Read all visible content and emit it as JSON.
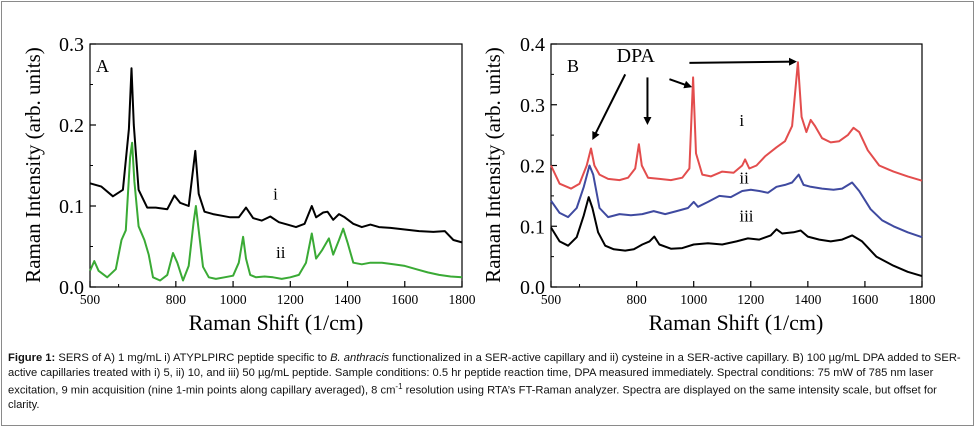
{
  "chart_data": [
    {
      "type": "line",
      "panel_label": "A",
      "xlabel": "Raman Shift (1/cm)",
      "ylabel": "Raman Intensity (arb. units)",
      "xlim": [
        500,
        1800
      ],
      "ylim": [
        0.0,
        0.3
      ],
      "x_ticks": [
        "500",
        "800",
        "1000",
        "1200",
        "1400",
        "1600",
        "1800"
      ],
      "x_tick_values": [
        500,
        800,
        1000,
        1200,
        1400,
        1600,
        1800
      ],
      "y_ticks": [
        "0.0",
        "0.1",
        "0.2",
        "0.3"
      ],
      "y_tick_values": [
        0.0,
        0.1,
        0.2,
        0.3
      ],
      "series": [
        {
          "name": "i",
          "color": "#000000",
          "points": [
            [
              500,
              0.128
            ],
            [
              540,
              0.124
            ],
            [
              580,
              0.112
            ],
            [
              615,
              0.12
            ],
            [
              636,
              0.195
            ],
            [
              645,
              0.27
            ],
            [
              653,
              0.2
            ],
            [
              670,
              0.12
            ],
            [
              700,
              0.098
            ],
            [
              730,
              0.098
            ],
            [
              770,
              0.096
            ],
            [
              795,
              0.113
            ],
            [
              815,
              0.104
            ],
            [
              845,
              0.1
            ],
            [
              868,
              0.168
            ],
            [
              880,
              0.115
            ],
            [
              900,
              0.093
            ],
            [
              930,
              0.09
            ],
            [
              960,
              0.088
            ],
            [
              990,
              0.086
            ],
            [
              1020,
              0.086
            ],
            [
              1045,
              0.098
            ],
            [
              1070,
              0.085
            ],
            [
              1100,
              0.082
            ],
            [
              1130,
              0.087
            ],
            [
              1160,
              0.08
            ],
            [
              1190,
              0.077
            ],
            [
              1220,
              0.074
            ],
            [
              1250,
              0.078
            ],
            [
              1275,
              0.1
            ],
            [
              1290,
              0.086
            ],
            [
              1315,
              0.092
            ],
            [
              1330,
              0.093
            ],
            [
              1350,
              0.083
            ],
            [
              1370,
              0.09
            ],
            [
              1390,
              0.086
            ],
            [
              1420,
              0.078
            ],
            [
              1450,
              0.074
            ],
            [
              1480,
              0.077
            ],
            [
              1510,
              0.074
            ],
            [
              1550,
              0.073
            ],
            [
              1600,
              0.071
            ],
            [
              1650,
              0.069
            ],
            [
              1700,
              0.068
            ],
            [
              1740,
              0.069
            ],
            [
              1770,
              0.058
            ],
            [
              1800,
              0.055
            ]
          ]
        },
        {
          "name": "ii",
          "color": "#3aaa35",
          "points": [
            [
              500,
              0.02
            ],
            [
              515,
              0.032
            ],
            [
              530,
              0.02
            ],
            [
              560,
              0.012
            ],
            [
              590,
              0.022
            ],
            [
              610,
              0.058
            ],
            [
              625,
              0.07
            ],
            [
              640,
              0.16
            ],
            [
              647,
              0.178
            ],
            [
              655,
              0.13
            ],
            [
              670,
              0.075
            ],
            [
              690,
              0.058
            ],
            [
              705,
              0.04
            ],
            [
              720,
              0.012
            ],
            [
              745,
              0.008
            ],
            [
              770,
              0.015
            ],
            [
              790,
              0.042
            ],
            [
              805,
              0.03
            ],
            [
              825,
              0.008
            ],
            [
              845,
              0.026
            ],
            [
              862,
              0.08
            ],
            [
              870,
              0.1
            ],
            [
              880,
              0.07
            ],
            [
              895,
              0.025
            ],
            [
              915,
              0.012
            ],
            [
              940,
              0.01
            ],
            [
              970,
              0.012
            ],
            [
              1000,
              0.014
            ],
            [
              1020,
              0.03
            ],
            [
              1035,
              0.062
            ],
            [
              1045,
              0.035
            ],
            [
              1060,
              0.015
            ],
            [
              1080,
              0.012
            ],
            [
              1110,
              0.013
            ],
            [
              1140,
              0.012
            ],
            [
              1170,
              0.01
            ],
            [
              1200,
              0.012
            ],
            [
              1230,
              0.015
            ],
            [
              1255,
              0.03
            ],
            [
              1275,
              0.066
            ],
            [
              1290,
              0.035
            ],
            [
              1310,
              0.045
            ],
            [
              1335,
              0.06
            ],
            [
              1350,
              0.04
            ],
            [
              1370,
              0.058
            ],
            [
              1385,
              0.072
            ],
            [
              1400,
              0.055
            ],
            [
              1420,
              0.03
            ],
            [
              1450,
              0.028
            ],
            [
              1480,
              0.03
            ],
            [
              1520,
              0.03
            ],
            [
              1560,
              0.028
            ],
            [
              1600,
              0.026
            ],
            [
              1640,
              0.022
            ],
            [
              1680,
              0.018
            ],
            [
              1720,
              0.015
            ],
            [
              1760,
              0.013
            ],
            [
              1800,
              0.012
            ]
          ]
        }
      ],
      "series_labels": [
        "i",
        "ii"
      ]
    },
    {
      "type": "line",
      "panel_label": "B",
      "annotation": "DPA",
      "xlabel": "Raman Shift (1/cm)",
      "ylabel": "Raman Intensity (arb. units)",
      "xlim": [
        500,
        1800
      ],
      "ylim": [
        0.0,
        0.4
      ],
      "x_ticks": [
        "500",
        "800",
        "1000",
        "1200",
        "1400",
        "1600",
        "1800"
      ],
      "x_tick_values": [
        500,
        800,
        1000,
        1200,
        1400,
        1600,
        1800
      ],
      "y_ticks": [
        "0.0",
        "0.1",
        "0.2",
        "0.3",
        "0.4"
      ],
      "y_tick_values": [
        0.0,
        0.1,
        0.2,
        0.3,
        0.4
      ],
      "series": [
        {
          "name": "i",
          "color": "#e34d4d",
          "points": [
            [
              500,
              0.2
            ],
            [
              530,
              0.17
            ],
            [
              570,
              0.162
            ],
            [
              600,
              0.17
            ],
            [
              625,
              0.2
            ],
            [
              640,
              0.228
            ],
            [
              652,
              0.2
            ],
            [
              670,
              0.185
            ],
            [
              700,
              0.178
            ],
            [
              740,
              0.176
            ],
            [
              770,
              0.18
            ],
            [
              795,
              0.195
            ],
            [
              808,
              0.235
            ],
            [
              818,
              0.2
            ],
            [
              840,
              0.18
            ],
            [
              880,
              0.178
            ],
            [
              920,
              0.176
            ],
            [
              960,
              0.18
            ],
            [
              985,
              0.195
            ],
            [
              998,
              0.345
            ],
            [
              1008,
              0.22
            ],
            [
              1030,
              0.185
            ],
            [
              1060,
              0.182
            ],
            [
              1100,
              0.19
            ],
            [
              1140,
              0.188
            ],
            [
              1170,
              0.2
            ],
            [
              1180,
              0.21
            ],
            [
              1195,
              0.195
            ],
            [
              1220,
              0.2
            ],
            [
              1250,
              0.215
            ],
            [
              1290,
              0.23
            ],
            [
              1320,
              0.24
            ],
            [
              1345,
              0.265
            ],
            [
              1365,
              0.37
            ],
            [
              1378,
              0.28
            ],
            [
              1395,
              0.255
            ],
            [
              1410,
              0.275
            ],
            [
              1425,
              0.265
            ],
            [
              1450,
              0.245
            ],
            [
              1480,
              0.238
            ],
            [
              1510,
              0.24
            ],
            [
              1540,
              0.25
            ],
            [
              1560,
              0.262
            ],
            [
              1580,
              0.255
            ],
            [
              1610,
              0.225
            ],
            [
              1650,
              0.2
            ],
            [
              1700,
              0.19
            ],
            [
              1750,
              0.182
            ],
            [
              1800,
              0.175
            ]
          ]
        },
        {
          "name": "ii",
          "color": "#3f4aa0",
          "points": [
            [
              500,
              0.142
            ],
            [
              530,
              0.122
            ],
            [
              560,
              0.115
            ],
            [
              590,
              0.13
            ],
            [
              615,
              0.165
            ],
            [
              635,
              0.2
            ],
            [
              648,
              0.185
            ],
            [
              670,
              0.13
            ],
            [
              700,
              0.115
            ],
            [
              740,
              0.12
            ],
            [
              780,
              0.118
            ],
            [
              820,
              0.12
            ],
            [
              860,
              0.125
            ],
            [
              900,
              0.12
            ],
            [
              940,
              0.125
            ],
            [
              980,
              0.13
            ],
            [
              1000,
              0.14
            ],
            [
              1015,
              0.132
            ],
            [
              1050,
              0.14
            ],
            [
              1090,
              0.15
            ],
            [
              1130,
              0.148
            ],
            [
              1170,
              0.158
            ],
            [
              1200,
              0.16
            ],
            [
              1230,
              0.158
            ],
            [
              1260,
              0.155
            ],
            [
              1290,
              0.165
            ],
            [
              1320,
              0.168
            ],
            [
              1345,
              0.172
            ],
            [
              1368,
              0.185
            ],
            [
              1385,
              0.168
            ],
            [
              1410,
              0.165
            ],
            [
              1450,
              0.162
            ],
            [
              1490,
              0.16
            ],
            [
              1520,
              0.162
            ],
            [
              1555,
              0.172
            ],
            [
              1580,
              0.158
            ],
            [
              1620,
              0.128
            ],
            [
              1660,
              0.11
            ],
            [
              1700,
              0.1
            ],
            [
              1750,
              0.09
            ],
            [
              1800,
              0.082
            ]
          ]
        },
        {
          "name": "iii",
          "color": "#000000",
          "points": [
            [
              500,
              0.098
            ],
            [
              530,
              0.075
            ],
            [
              560,
              0.068
            ],
            [
              590,
              0.082
            ],
            [
              615,
              0.118
            ],
            [
              632,
              0.148
            ],
            [
              645,
              0.13
            ],
            [
              665,
              0.09
            ],
            [
              690,
              0.068
            ],
            [
              720,
              0.062
            ],
            [
              760,
              0.06
            ],
            [
              790,
              0.062
            ],
            [
              820,
              0.07
            ],
            [
              845,
              0.075
            ],
            [
              862,
              0.083
            ],
            [
              880,
              0.07
            ],
            [
              920,
              0.063
            ],
            [
              960,
              0.064
            ],
            [
              1000,
              0.07
            ],
            [
              1050,
              0.072
            ],
            [
              1100,
              0.07
            ],
            [
              1150,
              0.075
            ],
            [
              1190,
              0.08
            ],
            [
              1230,
              0.078
            ],
            [
              1270,
              0.085
            ],
            [
              1290,
              0.095
            ],
            [
              1310,
              0.088
            ],
            [
              1350,
              0.09
            ],
            [
              1375,
              0.093
            ],
            [
              1400,
              0.083
            ],
            [
              1440,
              0.078
            ],
            [
              1480,
              0.075
            ],
            [
              1520,
              0.078
            ],
            [
              1555,
              0.085
            ],
            [
              1590,
              0.075
            ],
            [
              1640,
              0.05
            ],
            [
              1700,
              0.035
            ],
            [
              1750,
              0.025
            ],
            [
              1800,
              0.018
            ]
          ]
        }
      ],
      "series_labels": [
        "i",
        "ii",
        "iii"
      ]
    }
  ],
  "caption": {
    "figure_label": "Figure 1:",
    "text_1": " SERS of A) 1 mg/mL i) ATYPLPIRC peptide specific to ",
    "italic_1": "B. anthracis",
    "text_2": " functionalized in a SER-active capillary and ii) cysteine in a SER-active capillary. B) 100 µg/mL DPA added to SER-active capillaries treated with i) 5, ii) 10, and iii) 50 µg/mL peptide. Sample conditions: 0.5 hr peptide reaction time, DPA measured immediately. Spectral conditions: 75 mW of 785 nm laser excitation, 9 min acquisition (nine 1-min points along capillary averaged), 8 cm",
    "superscript": "-1",
    "text_3": " resolution using RTA’s FT-Raman analyzer. Spectra are displayed on the same intensity scale, but offset for clarity."
  }
}
